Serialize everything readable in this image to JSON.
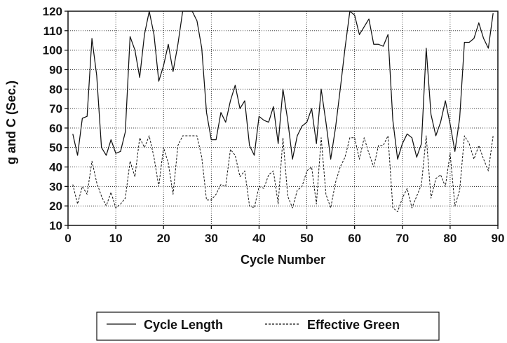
{
  "chart_data": {
    "type": "line",
    "xlabel": "Cycle Number",
    "ylabel": "g and C (Sec.)",
    "xlim": [
      0,
      90
    ],
    "ylim": [
      10,
      120
    ],
    "x_ticks": [
      0,
      10,
      20,
      30,
      40,
      50,
      60,
      70,
      80,
      90
    ],
    "y_ticks": [
      10,
      20,
      30,
      40,
      50,
      60,
      70,
      80,
      90,
      100,
      110,
      120
    ],
    "x_tick_labels": [
      "0",
      "10",
      "20",
      "30",
      "40",
      "50",
      "60",
      "70",
      "80",
      "90"
    ],
    "y_tick_labels": [
      "10",
      "20",
      "30",
      "40",
      "50",
      "60",
      "70",
      "80",
      "90",
      "100",
      "110",
      "120"
    ],
    "grid": true,
    "legend_position": "bottom",
    "series": [
      {
        "name": "Cycle Length",
        "style": "solid",
        "x": [
          1,
          2,
          3,
          4,
          5,
          6,
          7,
          8,
          9,
          10,
          11,
          12,
          13,
          14,
          15,
          16,
          17,
          18,
          19,
          20,
          21,
          22,
          23,
          24,
          25,
          26,
          27,
          28,
          29,
          30,
          31,
          32,
          33,
          34,
          35,
          36,
          37,
          38,
          39,
          40,
          41,
          42,
          43,
          44,
          45,
          46,
          47,
          48,
          49,
          50,
          51,
          52,
          53,
          54,
          55,
          56,
          57,
          58,
          59,
          60,
          61,
          62,
          63,
          64,
          65,
          66,
          67,
          68,
          69,
          70,
          71,
          72,
          73,
          74,
          75,
          76,
          77,
          78,
          79,
          80,
          81,
          82,
          83,
          84,
          85,
          86,
          87,
          88,
          89
        ],
        "values": [
          57,
          46,
          65,
          66,
          106,
          87,
          50,
          46,
          54,
          47,
          48,
          58,
          107,
          100,
          86,
          108,
          120,
          108,
          84,
          92,
          103,
          89,
          103,
          120,
          120,
          120,
          115,
          101,
          68,
          54,
          54,
          68,
          63,
          74,
          82,
          70,
          74,
          51,
          46,
          66,
          64,
          63,
          71,
          52,
          80,
          64,
          44,
          56,
          61,
          63,
          70,
          52,
          80,
          63,
          44,
          60,
          80,
          101,
          120,
          118,
          108,
          112,
          116,
          103,
          103,
          102,
          108,
          64,
          44,
          52,
          57,
          55,
          45,
          52,
          101,
          67,
          56,
          63,
          74,
          62,
          48,
          65,
          104,
          104,
          106,
          114,
          106,
          101,
          119
        ]
      },
      {
        "name": "Effective Green",
        "style": "dashed",
        "x": [
          1,
          2,
          3,
          4,
          5,
          6,
          7,
          8,
          9,
          10,
          11,
          12,
          13,
          14,
          15,
          16,
          17,
          18,
          19,
          20,
          21,
          22,
          23,
          24,
          25,
          26,
          27,
          28,
          29,
          30,
          31,
          32,
          33,
          34,
          35,
          36,
          37,
          38,
          39,
          40,
          41,
          42,
          43,
          44,
          45,
          46,
          47,
          48,
          49,
          50,
          51,
          52,
          53,
          54,
          55,
          56,
          57,
          58,
          59,
          60,
          61,
          62,
          63,
          64,
          65,
          66,
          67,
          68,
          69,
          70,
          71,
          72,
          73,
          74,
          75,
          76,
          77,
          78,
          79,
          80,
          81,
          82,
          83,
          84,
          85,
          86,
          87,
          88,
          89
        ],
        "values": [
          31,
          21,
          30,
          26,
          43,
          32,
          25,
          20,
          27,
          19,
          21,
          24,
          43,
          35,
          55,
          50,
          56,
          45,
          30,
          50,
          42,
          26,
          51,
          56,
          56,
          56,
          56,
          45,
          23,
          23,
          26,
          31,
          30,
          49,
          46,
          35,
          38,
          20,
          19,
          30,
          29,
          36,
          38,
          21,
          55,
          25,
          19,
          28,
          30,
          38,
          40,
          21,
          55,
          26,
          19,
          32,
          40,
          45,
          55,
          55,
          44,
          55,
          47,
          40,
          51,
          51,
          56,
          19,
          17,
          24,
          29,
          19,
          25,
          31,
          56,
          24,
          34,
          36,
          30,
          47,
          20,
          28,
          56,
          52,
          44,
          51,
          44,
          38,
          56
        ]
      }
    ]
  }
}
